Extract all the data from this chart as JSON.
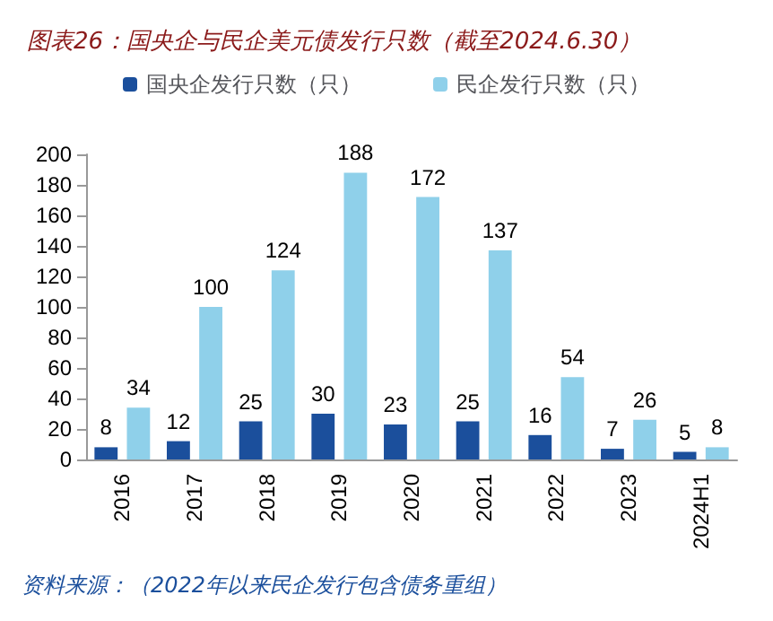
{
  "chart_data": {
    "type": "bar",
    "title": "图表26：国央企与民企美元债发行只数（截至2024.6.30）",
    "categories": [
      "2016",
      "2017",
      "2018",
      "2019",
      "2020",
      "2021",
      "2022",
      "2023",
      "2024H1"
    ],
    "series": [
      {
        "name": "国央企发行只数（只）",
        "color": "#1b4f9c",
        "values": [
          8,
          12,
          25,
          30,
          23,
          25,
          16,
          7,
          5
        ]
      },
      {
        "name": "民企发行只数（只）",
        "color": "#8fd0ea",
        "values": [
          34,
          100,
          124,
          188,
          172,
          137,
          54,
          26,
          8
        ]
      }
    ],
    "ylim": [
      0,
      200
    ],
    "yticks": [
      0,
      20,
      40,
      60,
      80,
      100,
      120,
      140,
      160,
      180,
      200
    ],
    "grid": false,
    "legend": "top",
    "data_labels": true,
    "annotations": [
      "资料来源：（2022年以来民企发行包含债务重组）"
    ]
  }
}
